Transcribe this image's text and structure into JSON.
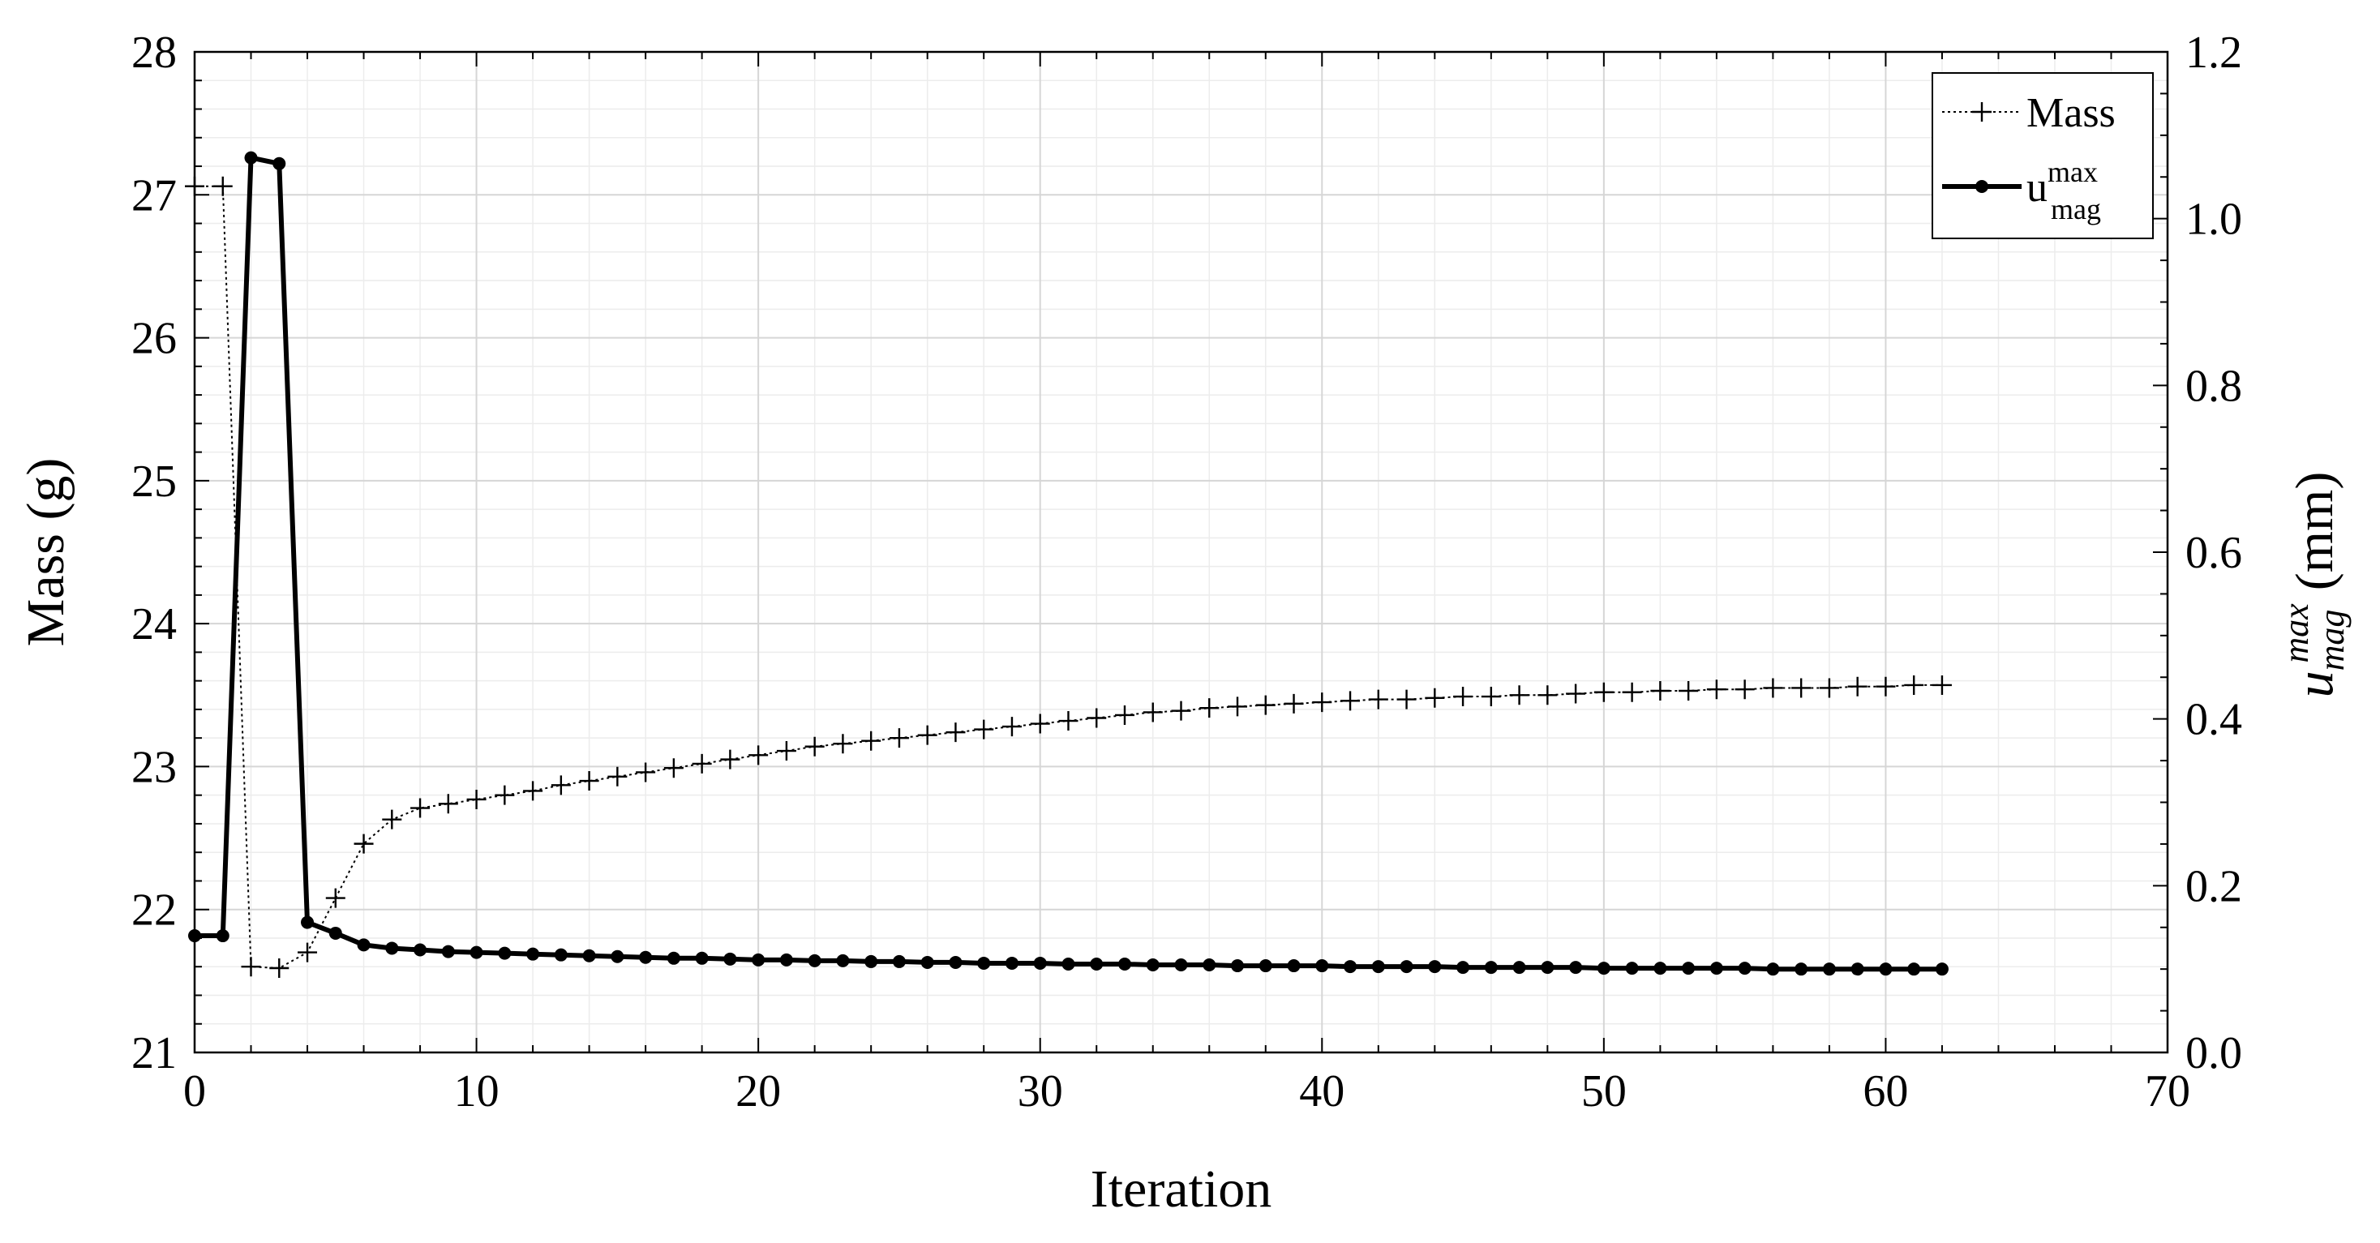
{
  "chart_data": {
    "type": "line",
    "xlabel": "Iteration",
    "ylabel_left": "Mass (g)",
    "ylabel_right": {
      "symbol": "u",
      "sup": "max",
      "sub": "mag",
      "unit": "(mm)"
    },
    "xlim": [
      0,
      70
    ],
    "ylim_left": [
      21,
      28
    ],
    "ylim_right": [
      0.0,
      1.2
    ],
    "x_ticks": [
      "0",
      "10",
      "20",
      "30",
      "40",
      "50",
      "60",
      "70"
    ],
    "y_left_ticks": [
      "21",
      "22",
      "23",
      "24",
      "25",
      "26",
      "27",
      "28"
    ],
    "y_right_ticks": [
      "0.0",
      "0.2",
      "0.4",
      "0.6",
      "0.8",
      "1.0",
      "1.2"
    ],
    "grid": true,
    "minor_grid": true,
    "legend_position": "top-right",
    "legend": [
      {
        "label": "Mass",
        "sup": "",
        "sub": ""
      },
      {
        "label": "u",
        "sup": "max",
        "sub": "mag"
      }
    ],
    "series": [
      {
        "axis": "left",
        "style": "dotted-plus",
        "x": [
          0,
          1,
          2,
          3,
          4,
          5,
          6,
          7,
          8,
          9,
          10,
          11,
          12,
          13,
          14,
          15,
          16,
          17,
          18,
          19,
          20,
          21,
          22,
          23,
          24,
          25,
          26,
          27,
          28,
          29,
          30,
          31,
          32,
          33,
          34,
          35,
          36,
          37,
          38,
          39,
          40,
          41,
          42,
          43,
          44,
          45,
          46,
          47,
          48,
          49,
          50,
          51,
          52,
          53,
          54,
          55,
          56,
          57,
          58,
          59,
          60,
          61,
          62
        ],
        "y": [
          27.06,
          27.06,
          21.6,
          21.59,
          21.7,
          22.08,
          22.46,
          22.63,
          22.71,
          22.74,
          22.77,
          22.8,
          22.83,
          22.87,
          22.9,
          22.93,
          22.96,
          22.99,
          23.02,
          23.05,
          23.08,
          23.11,
          23.14,
          23.16,
          23.18,
          23.2,
          23.22,
          23.24,
          23.26,
          23.28,
          23.3,
          23.32,
          23.34,
          23.36,
          23.38,
          23.39,
          23.41,
          23.42,
          23.43,
          23.44,
          23.45,
          23.46,
          23.47,
          23.47,
          23.48,
          23.49,
          23.49,
          23.5,
          23.5,
          23.51,
          23.52,
          23.52,
          23.53,
          23.53,
          23.54,
          23.54,
          23.55,
          23.55,
          23.55,
          23.56,
          23.56,
          23.57,
          23.57
        ]
      },
      {
        "axis": "right",
        "style": "solid-dot",
        "x": [
          0,
          1,
          2,
          3,
          4,
          5,
          6,
          7,
          8,
          9,
          10,
          11,
          12,
          13,
          14,
          15,
          16,
          17,
          18,
          19,
          20,
          21,
          22,
          23,
          24,
          25,
          26,
          27,
          28,
          29,
          30,
          31,
          32,
          33,
          34,
          35,
          36,
          37,
          38,
          39,
          40,
          41,
          42,
          43,
          44,
          45,
          46,
          47,
          48,
          49,
          50,
          51,
          52,
          53,
          54,
          55,
          56,
          57,
          58,
          59,
          60,
          61,
          62
        ],
        "y": [
          0.14,
          0.14,
          1.073,
          1.066,
          0.156,
          0.143,
          0.129,
          0.125,
          0.123,
          0.121,
          0.12,
          0.119,
          0.118,
          0.117,
          0.116,
          0.115,
          0.114,
          0.113,
          0.113,
          0.112,
          0.111,
          0.111,
          0.11,
          0.11,
          0.109,
          0.109,
          0.108,
          0.108,
          0.107,
          0.107,
          0.107,
          0.106,
          0.106,
          0.106,
          0.105,
          0.105,
          0.105,
          0.104,
          0.104,
          0.104,
          0.104,
          0.103,
          0.103,
          0.103,
          0.103,
          0.102,
          0.102,
          0.102,
          0.102,
          0.102,
          0.101,
          0.101,
          0.101,
          0.101,
          0.101,
          0.101,
          0.1,
          0.1,
          0.1,
          0.1,
          0.1,
          0.1,
          0.1
        ]
      }
    ]
  }
}
